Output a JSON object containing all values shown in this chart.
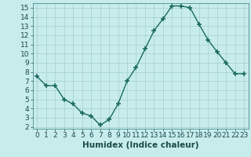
{
  "x": [
    0,
    1,
    2,
    3,
    4,
    5,
    6,
    7,
    8,
    9,
    10,
    11,
    12,
    13,
    14,
    15,
    16,
    17,
    18,
    19,
    20,
    21,
    22,
    23
  ],
  "y": [
    7.5,
    6.5,
    6.5,
    5.0,
    4.5,
    3.5,
    3.2,
    2.2,
    2.8,
    4.5,
    7.0,
    8.5,
    10.5,
    12.5,
    13.8,
    15.2,
    15.2,
    15.0,
    13.2,
    11.5,
    10.2,
    9.0,
    7.8,
    7.8
  ],
  "xlabel": "Humidex (Indice chaleur)",
  "ylim_min": 1.8,
  "ylim_max": 15.5,
  "yticks": [
    2,
    3,
    4,
    5,
    6,
    7,
    8,
    9,
    10,
    11,
    12,
    13,
    14,
    15
  ],
  "xticks": [
    0,
    1,
    2,
    3,
    4,
    5,
    6,
    7,
    8,
    9,
    10,
    11,
    12,
    13,
    14,
    15,
    16,
    17,
    18,
    19,
    20,
    21,
    22,
    23
  ],
  "line_color": "#1a6b5e",
  "marker_color": "#1a6b5e",
  "bg_color": "#c8ecec",
  "grid_color": "#a8d4d4",
  "xlabel_fontsize": 7.5,
  "tick_fontsize": 6.5,
  "line_width": 1.0,
  "marker_size": 4
}
